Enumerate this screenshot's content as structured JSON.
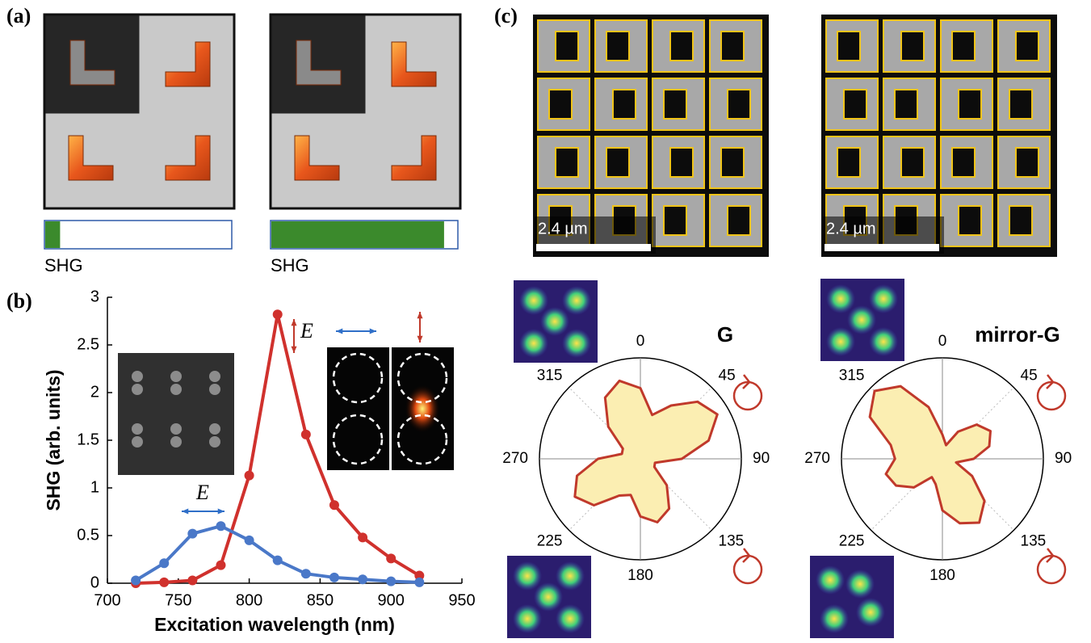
{
  "panel_labels": [
    "(a)",
    "(b)",
    "(c)"
  ],
  "panel_a": {
    "bars": [
      {
        "label": "SHG",
        "value": 0.08
      },
      {
        "label": "SHG",
        "value": 0.93
      }
    ]
  },
  "scale_bars": [
    "2.4 µm",
    "2.4 µm"
  ],
  "chart_data": [
    {
      "type": "line",
      "xlabel": "Excitation wavelength (nm)",
      "ylabel": "SHG (arb. units)",
      "x": [
        720,
        740,
        760,
        780,
        800,
        820,
        840,
        860,
        880,
        900,
        920
      ],
      "series": [
        {
          "color": "#d0312d",
          "values": [
            0,
            0.01,
            0.03,
            0.19,
            1.13,
            2.82,
            1.56,
            0.82,
            0.48,
            0.26,
            0.08
          ]
        },
        {
          "color": "#4a78c8",
          "values": [
            0.03,
            0.21,
            0.52,
            0.6,
            0.45,
            0.24,
            0.1,
            0.06,
            0.04,
            0.02,
            0.01
          ]
        }
      ],
      "xlim": [
        700,
        950
      ],
      "xticks": [
        700,
        750,
        800,
        850,
        900,
        950
      ],
      "ylim": [
        0,
        3
      ],
      "yticks": [
        0,
        0.5,
        1,
        1.5,
        2,
        2.5,
        3
      ],
      "annotations": [
        "E⃗",
        "E⃗"
      ]
    },
    {
      "type": "polar",
      "title": "G",
      "color": "#fbeeb2",
      "edge_color": "#c0392b",
      "rlim": [
        0,
        1
      ],
      "thetaticks": [
        0,
        45,
        90,
        135,
        180,
        225,
        270,
        315
      ],
      "theta": [
        0,
        15,
        30,
        45,
        60,
        75,
        90,
        105,
        120,
        135,
        150,
        165,
        180,
        195,
        210,
        225,
        240,
        255,
        270,
        285,
        300,
        315,
        330,
        345
      ],
      "r": [
        0.7,
        0.45,
        0.61,
        0.8,
        0.88,
        0.7,
        0.41,
        0.15,
        0.16,
        0.37,
        0.57,
        0.65,
        0.57,
        0.37,
        0.42,
        0.65,
        0.75,
        0.65,
        0.42,
        0.19,
        0.2,
        0.45,
        0.7,
        0.8
      ]
    },
    {
      "type": "polar",
      "title": "mirror-G",
      "color": "#fbeeb2",
      "edge_color": "#c0392b",
      "rlim": [
        0,
        1
      ],
      "thetaticks": [
        0,
        45,
        90,
        135,
        180,
        225,
        270,
        315
      ],
      "theta": [
        0,
        15,
        30,
        45,
        60,
        75,
        90,
        105,
        120,
        135,
        150,
        165,
        180,
        195,
        210,
        225,
        240,
        255,
        270,
        285,
        300,
        315,
        330,
        345
      ],
      "r": [
        0.24,
        0.14,
        0.31,
        0.48,
        0.55,
        0.48,
        0.31,
        0.14,
        0.34,
        0.59,
        0.73,
        0.66,
        0.51,
        0.26,
        0.21,
        0.4,
        0.53,
        0.58,
        0.47,
        0.53,
        0.83,
        0.95,
        0.83,
        0.53
      ]
    }
  ]
}
